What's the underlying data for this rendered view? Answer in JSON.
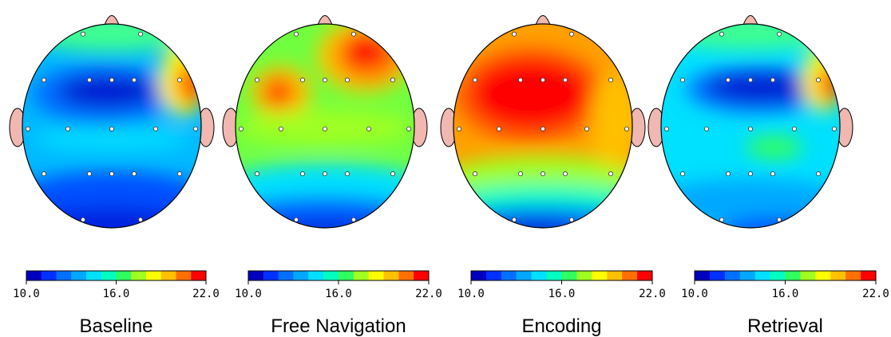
{
  "colormap": [
    "#0000c0",
    "#0030ff",
    "#0070ff",
    "#00a8ff",
    "#00e0ff",
    "#00ffc0",
    "#30ff60",
    "#a0ff20",
    "#ffff00",
    "#ffc000",
    "#ff7000",
    "#ff0000"
  ],
  "panels": [
    {
      "title": "Baseline",
      "colorbar": {
        "range": [
          10,
          22
        ],
        "ticks": [
          {
            "value": 10,
            "label": "10.0"
          },
          {
            "value": 16,
            "label": "16.0"
          },
          {
            "value": 22,
            "label": "22.0"
          }
        ]
      }
    },
    {
      "title": "Free Navigation",
      "colorbar": {
        "range": [
          10,
          22
        ],
        "ticks": [
          {
            "value": 10,
            "label": "10.0"
          },
          {
            "value": 16,
            "label": "16.0"
          },
          {
            "value": 22,
            "label": "22.0"
          }
        ]
      }
    },
    {
      "title": "Encoding",
      "colorbar": {
        "range": [
          10,
          22
        ],
        "ticks": [
          {
            "value": 10,
            "label": "10.0"
          },
          {
            "value": 16,
            "label": "16.0"
          },
          {
            "value": 22,
            "label": "22.0"
          }
        ]
      }
    },
    {
      "title": "Retrieval",
      "colorbar": {
        "range": [
          10,
          22
        ],
        "ticks": [
          {
            "value": 10,
            "label": "10.0"
          },
          {
            "value": 16,
            "label": "16.0"
          },
          {
            "value": 22,
            "label": "22.0"
          }
        ]
      }
    }
  ]
}
